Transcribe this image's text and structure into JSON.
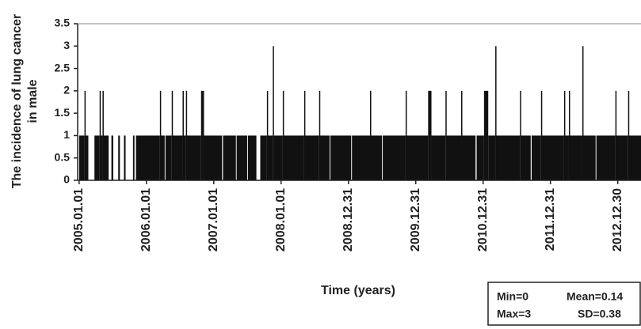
{
  "chart_data": {
    "type": "bar",
    "ylabel": [
      "The incidence of lung cancer",
      "in male"
    ],
    "xlabel": "Time (years)",
    "x": [
      "2005.01.01",
      "2005.01.30",
      "2005.02.03",
      "2005.02.20",
      "2005.03.25",
      "2005.04.22",
      "2005.04.25",
      "2005.05.08",
      "2005.05.12",
      "2005.06.10",
      "2005.06.25",
      "2005.07.05",
      "2005.08.01",
      "2005.08.10",
      "2005.09.01",
      "2005.09.10",
      "2005.10.20",
      "2005.10.28",
      "2005.11.05",
      "2006.03.15",
      "2006.03.18",
      "2006.04.10",
      "2006.04.14",
      "2006.05.18",
      "2006.05.22",
      "2006.07.16",
      "2006.07.19",
      "2006.08.03",
      "2006.08.06",
      "2006.10.24",
      "2006.11.09",
      "2007.02.15",
      "2007.02.20",
      "2007.05.01",
      "2007.05.05",
      "2007.07.01",
      "2007.07.05",
      "2007.08.20",
      "2007.09.10",
      "2007.10.16",
      "2007.10.20",
      "2007.11.17",
      "2007.11.21",
      "2008.01.10",
      "2008.01.14",
      "2008.05.05",
      "2008.05.09",
      "2008.07.25",
      "2008.07.29",
      "2008.09.20",
      "2008.09.24",
      "2009.01.15",
      "2009.01.19",
      "2009.04.27",
      "2009.05.01",
      "2009.07.01",
      "2009.07.05",
      "2009.11.06",
      "2009.11.10",
      "2010.03.08",
      "2010.03.26",
      "2010.06.10",
      "2010.06.14",
      "2010.09.03",
      "2010.09.07",
      "2010.11.20",
      "2010.11.26",
      "2011.01.05",
      "2011.01.28",
      "2011.03.07",
      "2011.03.11",
      "2011.07.19",
      "2011.07.23",
      "2011.09.15",
      "2011.09.20",
      "2011.11.10",
      "2011.11.14",
      "2012.03.14",
      "2012.03.18",
      "2012.04.09",
      "2012.04.13",
      "2012.06.21",
      "2012.06.25",
      "2012.09.01",
      "2012.09.05",
      "2012.12.17",
      "2012.12.21",
      "2013.02.24",
      "2013.02.28"
    ],
    "values": [
      1,
      2,
      1,
      0,
      1,
      2,
      1,
      2,
      1,
      0,
      1,
      0,
      1,
      0,
      1,
      0,
      1,
      0,
      1,
      2,
      1,
      0,
      1,
      2,
      1,
      2,
      1,
      2,
      1,
      2,
      1,
      0,
      1,
      0,
      1,
      0,
      1,
      0,
      1,
      2,
      1,
      3,
      1,
      2,
      1,
      2,
      1,
      2,
      1,
      0,
      1,
      0,
      1,
      2,
      1,
      0,
      1,
      2,
      1,
      2,
      1,
      2,
      1,
      2,
      1,
      0,
      1,
      2,
      1,
      3,
      1,
      2,
      1,
      0,
      1,
      2,
      1,
      2,
      1,
      2,
      1,
      3,
      1,
      0,
      1,
      2,
      1,
      2,
      1
    ],
    "color": "#111111",
    "xlim": [
      "2004.12.24",
      "2013.05.05"
    ],
    "xticks": [
      "2005.01.01",
      "2006.01.01",
      "2007.01.01",
      "2008.01.01",
      "2008.12.31",
      "2009.12.31",
      "2010.12.31",
      "2011.12.31",
      "2012.12.30"
    ],
    "ylim": [
      0,
      3.5
    ],
    "yticks": [
      0,
      0.5,
      1,
      1.5,
      2,
      2.5,
      3,
      3.5
    ],
    "grid": false,
    "stats": [
      "Min=0",
      "Mean=0.14",
      "Max=3",
      "SD=0.38"
    ]
  }
}
